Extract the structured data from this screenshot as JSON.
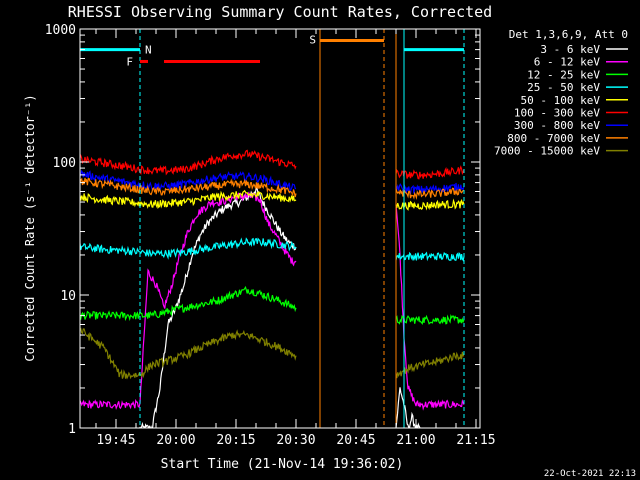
{
  "chart_data": {
    "type": "line",
    "title": "RHESSI Observing Summary Count Rates, Corrected",
    "xlabel": "Start Time (21-Nov-14 19:36:02)",
    "ylabel": "Corrected Count Rate (s⁻¹ detector⁻¹)",
    "y_scale": "log",
    "ylim": [
      1,
      1000
    ],
    "xlim_minutes": [
      0,
      100
    ],
    "x_ticks": [
      {
        "label": "19:45",
        "t": 9
      },
      {
        "label": "20:00",
        "t": 24
      },
      {
        "label": "20:15",
        "t": 39
      },
      {
        "label": "20:30",
        "t": 54
      },
      {
        "label": "20:45",
        "t": 69
      },
      {
        "label": "21:00",
        "t": 84
      },
      {
        "label": "21:15",
        "t": 99
      }
    ],
    "y_ticks": [
      {
        "label": "1",
        "v": 1
      },
      {
        "label": "10",
        "v": 10
      },
      {
        "label": "100",
        "v": 100
      },
      {
        "label": "1000",
        "v": 1000
      }
    ],
    "legend_header": "Det 1,3,6,9, Att 0",
    "legend_placement": "right",
    "series": [
      {
        "name": "3 - 6 keV",
        "color": "#ffffff",
        "segments": [
          {
            "x": [
              15,
              16,
              18,
              20,
              22,
              24,
              26,
              28,
              30,
              32,
              34,
              36,
              38,
              40,
              42,
              44,
              46,
              48,
              50,
              52,
              54
            ],
            "y": [
              1,
              1,
              1,
              2,
              6,
              8,
              12,
              20,
              28,
              35,
              40,
              45,
              48,
              50,
              55,
              62,
              48,
              38,
              30,
              25,
              23
            ]
          },
          {
            "x": [
              79,
              80,
              81,
              82,
              83,
              84,
              85
            ],
            "y": [
              1,
              2,
              1.5,
              1,
              1.2,
              1,
              1
            ]
          }
        ]
      },
      {
        "name": "6 - 12 keV",
        "color": "#ff00ff",
        "segments": [
          {
            "x": [
              0,
              4,
              8,
              12,
              15,
              17,
              19,
              21,
              23,
              25,
              27,
              29,
              31,
              33,
              35,
              37,
              39,
              41,
              43,
              45,
              47,
              49,
              51,
              53,
              54
            ],
            "y": [
              1.5,
              1.5,
              1.5,
              1.5,
              1.5,
              15,
              12,
              8,
              12,
              20,
              30,
              40,
              45,
              50,
              50,
              52,
              55,
              55,
              55,
              52,
              35,
              28,
              22,
              18,
              18
            ]
          },
          {
            "x": [
              79,
              80,
              81,
              82,
              84,
              86,
              88,
              90,
              92,
              94,
              96
            ],
            "y": [
              50,
              20,
              5,
              2,
              1.5,
              1.5,
              1.5,
              1.5,
              1.5,
              1.5,
              1.5
            ]
          }
        ]
      },
      {
        "name": "12 - 25 keV",
        "color": "#00ff00",
        "segments": [
          {
            "x": [
              0,
              6,
              12,
              15,
              18,
              22,
              26,
              30,
              34,
              38,
              42,
              46,
              50,
              54
            ],
            "y": [
              7,
              7,
              7,
              7,
              7,
              7.5,
              8,
              8.5,
              9,
              10,
              11,
              10,
              9,
              8
            ]
          },
          {
            "x": [
              79,
              82,
              86,
              90,
              94,
              96
            ],
            "y": [
              6.5,
              6.5,
              6.5,
              6.5,
              6.5,
              6.5
            ]
          }
        ]
      },
      {
        "name": "25 - 50 keV",
        "color": "#00ffff",
        "segments": [
          {
            "x": [
              0,
              6,
              12,
              15,
              18,
              22,
              26,
              30,
              34,
              38,
              42,
              46,
              50,
              54
            ],
            "y": [
              23,
              22,
              21.5,
              21,
              20.5,
              20.5,
              21,
              22,
              23,
              24,
              25,
              25,
              24,
              23
            ]
          },
          {
            "x": [
              79,
              82,
              86,
              90,
              94,
              96
            ],
            "y": [
              19.5,
              19.5,
              19.5,
              19.5,
              19.5,
              19.5
            ]
          }
        ]
      },
      {
        "name": "50 - 100 keV",
        "color": "#ffff00",
        "segments": [
          {
            "x": [
              0,
              6,
              12,
              15,
              18,
              22,
              26,
              30,
              34,
              38,
              42,
              46,
              50,
              54
            ],
            "y": [
              55,
              52,
              50,
              49,
              48,
              49,
              50,
              52,
              55,
              56,
              57,
              56,
              54,
              52
            ]
          },
          {
            "x": [
              79,
              82,
              86,
              90,
              94,
              96
            ],
            "y": [
              47,
              47,
              47,
              48,
              48,
              48
            ]
          }
        ]
      },
      {
        "name": "100 - 300 keV",
        "color": "#ff0000",
        "segments": [
          {
            "x": [
              0,
              6,
              12,
              15,
              18,
              22,
              26,
              30,
              34,
              38,
              42,
              46,
              50,
              54
            ],
            "y": [
              105,
              98,
              92,
              88,
              86,
              86,
              88,
              95,
              105,
              112,
              115,
              108,
              100,
              93
            ]
          },
          {
            "x": [
              79,
              82,
              86,
              90,
              94,
              96
            ],
            "y": [
              82,
              80,
              80,
              82,
              85,
              88
            ]
          }
        ]
      },
      {
        "name": "300 - 800 keV",
        "color": "#0000ff",
        "segments": [
          {
            "x": [
              0,
              6,
              12,
              15,
              18,
              22,
              26,
              30,
              34,
              38,
              42,
              46,
              50,
              54
            ],
            "y": [
              82,
              75,
              70,
              68,
              66,
              66,
              68,
              72,
              76,
              78,
              78,
              74,
              68,
              63
            ]
          },
          {
            "x": [
              79,
              82,
              86,
              90,
              94,
              96
            ],
            "y": [
              65,
              62,
              62,
              63,
              65,
              66
            ]
          }
        ]
      },
      {
        "name": "800 - 7000 keV",
        "color": "#ff8000",
        "segments": [
          {
            "x": [
              0,
              6,
              12,
              15,
              18,
              22,
              26,
              30,
              34,
              38,
              42,
              46,
              50,
              54
            ],
            "y": [
              72,
              68,
              64,
              62,
              60,
              60,
              62,
              64,
              66,
              68,
              68,
              65,
              62,
              58
            ]
          },
          {
            "x": [
              79,
              82,
              86,
              90,
              94,
              96
            ],
            "y": [
              60,
              57,
              57,
              58,
              60,
              61
            ]
          }
        ]
      },
      {
        "name": "7000 - 15000 keV",
        "color": "#808000",
        "segments": [
          {
            "x": [
              0,
              6,
              10,
              12,
              15,
              18,
              22,
              26,
              30,
              34,
              38,
              42,
              46,
              50,
              54
            ],
            "y": [
              5.5,
              4,
              2.5,
              2.5,
              2.5,
              3,
              3.2,
              3.5,
              4,
              4.5,
              5,
              5,
              4.5,
              4,
              3.5
            ]
          },
          {
            "x": [
              79,
              82,
              86,
              90,
              94,
              96
            ],
            "y": [
              2.5,
              2.8,
              3,
              3.2,
              3.5,
              3.5
            ]
          }
        ]
      }
    ],
    "annotations": [
      {
        "label": "N",
        "color": "#00ffff",
        "t": 15
      },
      {
        "label": "F",
        "color": "#ff0000",
        "t": 14
      },
      {
        "label": "S",
        "color": "#ff8000",
        "t": 60
      }
    ],
    "flag_bars": [
      {
        "color": "#00ffff",
        "x": [
          0,
          15
        ],
        "y": 700
      },
      {
        "color": "#00ffff",
        "x": [
          81,
          96
        ],
        "y": 700
      },
      {
        "color": "#ff0000",
        "x": [
          15,
          17
        ],
        "y": 570
      },
      {
        "color": "#ff0000",
        "x": [
          21,
          45
        ],
        "y": 570
      },
      {
        "color": "#ff8000",
        "x": [
          60,
          76
        ],
        "y": 820
      }
    ],
    "vlines": [
      {
        "t": 0,
        "color": "#00ffff",
        "dashed": false
      },
      {
        "t": 15,
        "color": "#00ffff",
        "dashed": true
      },
      {
        "t": 60,
        "color": "#ff8000",
        "dashed": false
      },
      {
        "t": 76,
        "color": "#ff8000",
        "dashed": true
      },
      {
        "t": 79,
        "color": "#ff8000",
        "dashed": false
      },
      {
        "t": 81,
        "color": "#00ffff",
        "dashed": false
      },
      {
        "t": 96,
        "color": "#00ffff",
        "dashed": true
      }
    ],
    "timestamp": "22-Oct-2021 22:13"
  }
}
